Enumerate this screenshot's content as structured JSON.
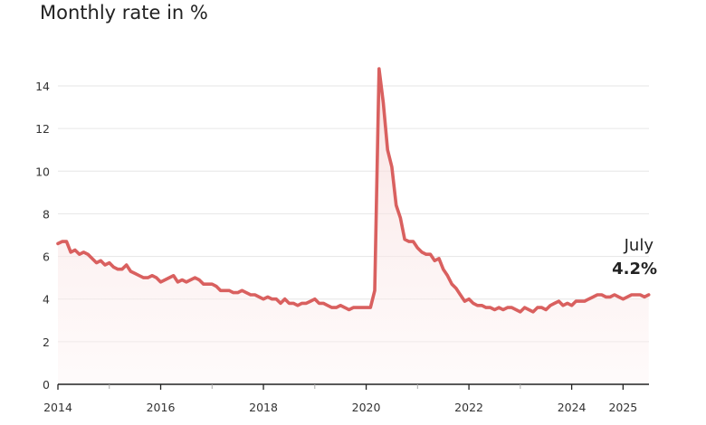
{
  "chart_data": {
    "type": "area",
    "title": "Monthly rate in %",
    "xlabel": "",
    "ylabel": "",
    "ylim": [
      0,
      14
    ],
    "yticks": [
      "0",
      "2",
      "4",
      "6",
      "8",
      "10",
      "12",
      "14"
    ],
    "xticks": [
      {
        "label": "2014",
        "month_index": 0
      },
      {
        "label": "2016",
        "month_index": 24
      },
      {
        "label": "2018",
        "month_index": 48
      },
      {
        "label": "2020",
        "month_index": 72
      },
      {
        "label": "2022",
        "month_index": 96
      },
      {
        "label": "2024",
        "month_index": 120
      },
      {
        "label": "2025",
        "month_index": 132
      }
    ],
    "minor_ticks_month_index": [
      12,
      36,
      60,
      84,
      108
    ],
    "start": "2014-01",
    "end": "2025-07",
    "values": [
      6.6,
      6.7,
      6.7,
      6.2,
      6.3,
      6.1,
      6.2,
      6.1,
      5.9,
      5.7,
      5.8,
      5.6,
      5.7,
      5.5,
      5.4,
      5.4,
      5.6,
      5.3,
      5.2,
      5.1,
      5.0,
      5.0,
      5.1,
      5.0,
      4.8,
      4.9,
      5.0,
      5.1,
      4.8,
      4.9,
      4.8,
      4.9,
      5.0,
      4.9,
      4.7,
      4.7,
      4.7,
      4.6,
      4.4,
      4.4,
      4.4,
      4.3,
      4.3,
      4.4,
      4.3,
      4.2,
      4.2,
      4.1,
      4.0,
      4.1,
      4.0,
      4.0,
      3.8,
      4.0,
      3.8,
      3.8,
      3.7,
      3.8,
      3.8,
      3.9,
      4.0,
      3.8,
      3.8,
      3.7,
      3.6,
      3.6,
      3.7,
      3.6,
      3.5,
      3.6,
      3.6,
      3.6,
      3.6,
      3.6,
      4.4,
      14.8,
      13.2,
      11.0,
      10.2,
      8.4,
      7.8,
      6.8,
      6.7,
      6.7,
      6.4,
      6.2,
      6.1,
      6.1,
      5.8,
      5.9,
      5.4,
      5.1,
      4.7,
      4.5,
      4.2,
      3.9,
      4.0,
      3.8,
      3.7,
      3.7,
      3.6,
      3.6,
      3.5,
      3.6,
      3.5,
      3.6,
      3.6,
      3.5,
      3.4,
      3.6,
      3.5,
      3.4,
      3.6,
      3.6,
      3.5,
      3.7,
      3.8,
      3.9,
      3.7,
      3.8,
      3.7,
      3.9,
      3.9,
      3.9,
      4.0,
      4.1,
      4.2,
      4.2,
      4.1,
      4.1,
      4.2,
      4.1,
      4.0,
      4.1,
      4.2,
      4.2,
      4.2,
      4.1,
      4.2
    ],
    "grid": true,
    "line_color": "#d9605f",
    "fill_color": "#fbe9e8",
    "annotation": {
      "label": "July",
      "value_label": "4.2%"
    }
  }
}
